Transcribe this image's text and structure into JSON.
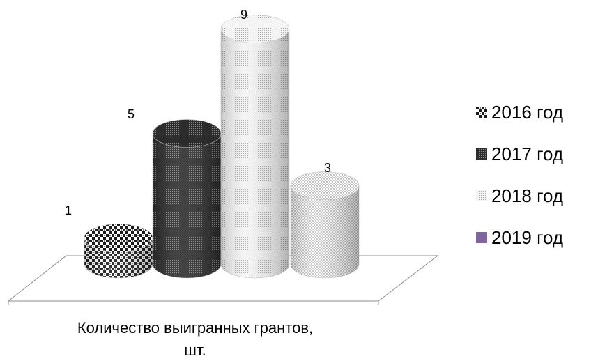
{
  "chart_data": {
    "type": "bar",
    "style": "3d-cylinder",
    "categories": [
      "Количество выигранных грантов, шт."
    ],
    "series": [
      {
        "name": "2016 год",
        "values": [
          1
        ],
        "pattern": "checker"
      },
      {
        "name": "2017 год",
        "values": [
          5
        ],
        "pattern": "dense-dots"
      },
      {
        "name": "2018 год",
        "values": [
          9
        ],
        "pattern": "light-dots"
      },
      {
        "name": "2019 год",
        "values": [
          3
        ],
        "pattern": "sparse-dots"
      }
    ],
    "data_labels": [
      "1",
      "5",
      "9",
      "3"
    ],
    "category_label_lines": [
      "Количество выигранных грантов,",
      "шт."
    ],
    "legend_position": "right",
    "legend_entries": [
      {
        "label": "2016 год",
        "swatch": "checker"
      },
      {
        "label": "2017 год",
        "swatch": "dense-dots"
      },
      {
        "label": "2018 год",
        "swatch": "light-dots"
      },
      {
        "label": "2019 год",
        "swatch": "solid",
        "color": "#8064a2"
      }
    ],
    "grid": false
  }
}
